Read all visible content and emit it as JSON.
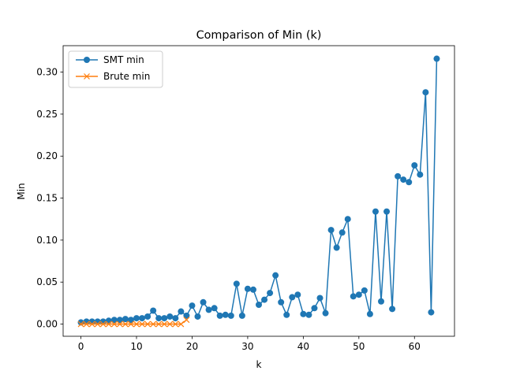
{
  "chart_data": {
    "type": "line",
    "title": "Comparison of Min (k)",
    "xlabel": "k",
    "ylabel": "Min",
    "xlim": [
      -3.2,
      67.2
    ],
    "ylim": [
      -0.0145,
      0.3315
    ],
    "xticks": [
      0,
      10,
      20,
      30,
      40,
      50,
      60
    ],
    "yticks": [
      0.0,
      0.05,
      0.1,
      0.15,
      0.2,
      0.25,
      0.3
    ],
    "ytick_labels": [
      "0.00",
      "0.05",
      "0.10",
      "0.15",
      "0.20",
      "0.25",
      "0.30"
    ],
    "grid": false,
    "legend_position": "upper-left",
    "series": [
      {
        "name": "SMT min",
        "color": "#1f77b4",
        "marker": "circle",
        "x": [
          0,
          1,
          2,
          3,
          4,
          5,
          6,
          7,
          8,
          9,
          10,
          11,
          12,
          13,
          14,
          15,
          16,
          17,
          18,
          19,
          20,
          21,
          22,
          23,
          24,
          25,
          26,
          27,
          28,
          29,
          30,
          31,
          32,
          33,
          34,
          35,
          36,
          37,
          38,
          39,
          40,
          41,
          42,
          43,
          44,
          45,
          46,
          47,
          48,
          49,
          50,
          51,
          52,
          53,
          54,
          55,
          56,
          57,
          58,
          59,
          60,
          61,
          62,
          63,
          64
        ],
        "y": [
          0.002,
          0.003,
          0.003,
          0.003,
          0.003,
          0.004,
          0.005,
          0.005,
          0.006,
          0.005,
          0.007,
          0.007,
          0.009,
          0.016,
          0.007,
          0.007,
          0.009,
          0.007,
          0.015,
          0.01,
          0.022,
          0.009,
          0.026,
          0.017,
          0.019,
          0.01,
          0.011,
          0.01,
          0.048,
          0.01,
          0.042,
          0.041,
          0.023,
          0.029,
          0.037,
          0.058,
          0.026,
          0.011,
          0.032,
          0.035,
          0.012,
          0.011,
          0.019,
          0.031,
          0.013,
          0.112,
          0.091,
          0.109,
          0.125,
          0.033,
          0.035,
          0.04,
          0.012,
          0.134,
          0.027,
          0.134,
          0.018,
          0.176,
          0.172,
          0.169,
          0.189,
          0.178,
          0.276,
          0.014,
          0.316
        ]
      },
      {
        "name": "Brute min",
        "color": "#ff7f0e",
        "marker": "x",
        "x": [
          0,
          1,
          2,
          3,
          4,
          5,
          6,
          7,
          8,
          9,
          10,
          11,
          12,
          13,
          14,
          15,
          16,
          17,
          18,
          19
        ],
        "y": [
          0,
          0,
          0,
          0,
          0,
          0,
          0,
          0,
          0,
          0,
          0,
          0,
          0,
          0,
          0,
          0,
          0,
          0,
          0,
          0.005
        ]
      }
    ]
  }
}
